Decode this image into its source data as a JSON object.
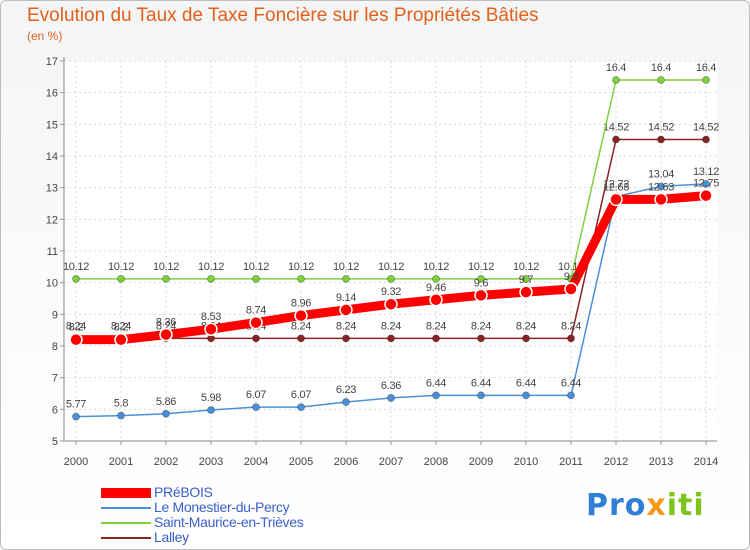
{
  "header": {
    "title": "Evolution du Taux de Taxe Foncière sur les Propriétés Bâties",
    "unit": "(en %)"
  },
  "logo": {
    "part1": "Pro",
    "part2": "x",
    "part3": "iti"
  },
  "chart_data": {
    "type": "line",
    "title": "Evolution du Taux de Taxe Foncière sur les Propriétés Bâties",
    "ylabel": "(en %)",
    "xlabel": "",
    "x": [
      "2000",
      "2001",
      "2002",
      "2003",
      "2004",
      "2005",
      "2006",
      "2007",
      "2008",
      "2009",
      "2010",
      "2011",
      "2012",
      "2013",
      "2014"
    ],
    "ylim": [
      5,
      17
    ],
    "yticks": [
      5,
      6,
      7,
      8,
      9,
      10,
      11,
      12,
      13,
      14,
      15,
      16,
      17
    ],
    "grid": true,
    "legend": "bottom-left",
    "series": [
      {
        "name": "Lalley",
        "color": "#8b2323",
        "values": [
          8.24,
          8.24,
          8.24,
          8.24,
          8.24,
          8.24,
          8.24,
          8.24,
          8.24,
          8.24,
          8.24,
          8.24,
          14.52,
          14.52,
          14.52
        ],
        "labels": [
          "8.24",
          "8.24",
          "8.24",
          "8.24",
          "8.24",
          "8.24",
          "8.24",
          "8.24",
          "8.24",
          "8.24",
          "8.24",
          "8.24",
          "14.52",
          "14.52",
          "14.52"
        ]
      },
      {
        "name": "Saint-Maurice-en-Trièves",
        "color": "#7fd13b",
        "values": [
          10.12,
          10.12,
          10.12,
          10.12,
          10.12,
          10.12,
          10.12,
          10.12,
          10.12,
          10.12,
          10.12,
          10.12,
          16.4,
          16.4,
          16.4
        ],
        "labels": [
          "10.12",
          "10.12",
          "10.12",
          "10.12",
          "10.12",
          "10.12",
          "10.12",
          "10.12",
          "10.12",
          "10.12",
          "10.12",
          "10.12",
          "16.4",
          "16.4",
          "16.4"
        ]
      },
      {
        "name": "Le Monestier-du-Percy",
        "color": "#4a90d9",
        "values": [
          5.77,
          5.8,
          5.86,
          5.98,
          6.07,
          6.07,
          6.23,
          6.36,
          6.44,
          6.44,
          6.44,
          6.44,
          12.72,
          13.04,
          13.12
        ],
        "labels": [
          "5.77",
          "5.8",
          "5.86",
          "5.98",
          "6.07",
          "6.07",
          "6.23",
          "6.36",
          "6.44",
          "6.44",
          "6.44",
          "6.44",
          "12.72",
          "13.04",
          "13.12"
        ]
      },
      {
        "name": "PRéBOIS",
        "color": "#ff0000",
        "values": [
          8.2,
          8.2,
          8.36,
          8.53,
          8.74,
          8.96,
          9.14,
          9.32,
          9.46,
          9.6,
          9.7,
          9.8,
          12.63,
          12.63,
          12.75
        ],
        "labels": [
          "8.2",
          "8.2",
          "8.36",
          "8.53",
          "8.74",
          "8.96",
          "9.14",
          "9.32",
          "9.46",
          "9.6",
          "9.7",
          "9.8",
          "12.63",
          "12.63",
          "12.75"
        ]
      }
    ]
  }
}
